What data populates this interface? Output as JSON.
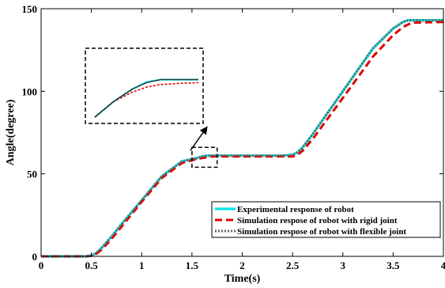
{
  "chart_data": {
    "type": "line",
    "title": "",
    "xlabel": "Time(s)",
    "ylabel": "Angle(degree)",
    "xlim": [
      0,
      4
    ],
    "ylim": [
      0,
      150
    ],
    "xticks": [
      0,
      0.5,
      1,
      1.5,
      2,
      2.5,
      3,
      3.5,
      4
    ],
    "xtick_labels": [
      "0",
      "0.5",
      "1",
      "1.5",
      "2",
      "2.5",
      "3",
      "3.5",
      "4"
    ],
    "yticks": [
      0,
      50,
      100,
      150
    ],
    "ytick_labels": [
      "0",
      "50",
      "100",
      "150"
    ],
    "grid": false,
    "legend_position": "bottom-right",
    "series": [
      {
        "name": "Experimental response of robot",
        "color": "#00e5e5",
        "style": "solid",
        "x": [
          0,
          0.45,
          0.5,
          0.55,
          0.6,
          0.7,
          0.8,
          1.0,
          1.2,
          1.4,
          1.55,
          1.6,
          1.65,
          1.7,
          1.8,
          2.0,
          2.2,
          2.4,
          2.5,
          2.55,
          2.6,
          2.7,
          3.0,
          3.3,
          3.5,
          3.6,
          3.65,
          3.7,
          4.0
        ],
        "y": [
          0,
          0,
          0.5,
          2,
          5,
          12,
          19.5,
          34,
          48.5,
          57.5,
          59.5,
          60.5,
          61,
          61,
          61,
          61,
          61,
          61,
          61.5,
          63,
          66,
          74,
          100,
          126,
          138,
          142,
          143,
          143,
          143
        ]
      },
      {
        "name": "Simulation respose of robot with rigid joint",
        "color": "#e00000",
        "style": "dashed",
        "x": [
          0,
          0.45,
          0.5,
          0.55,
          0.6,
          0.7,
          0.8,
          1.0,
          1.2,
          1.4,
          1.55,
          1.6,
          1.65,
          1.7,
          1.8,
          2.0,
          2.2,
          2.4,
          2.5,
          2.55,
          2.6,
          2.7,
          3.0,
          3.3,
          3.5,
          3.6,
          3.65,
          3.7,
          4.0
        ],
        "y": [
          0,
          0,
          0.3,
          1.5,
          4,
          10.5,
          18,
          33,
          47.5,
          56.5,
          59,
          59.5,
          60,
          60.5,
          60.5,
          60.5,
          60.5,
          60.5,
          60.5,
          61.5,
          64,
          71,
          96,
          121,
          134,
          139,
          140.5,
          141.5,
          142
        ]
      },
      {
        "name": "Simulation respose of robot with flexible joint",
        "color": "#666666",
        "style": "dotted",
        "x": [
          0,
          0.45,
          0.5,
          0.55,
          0.6,
          0.7,
          0.8,
          1.0,
          1.2,
          1.4,
          1.55,
          1.6,
          1.65,
          1.7,
          1.8,
          2.0,
          2.2,
          2.4,
          2.5,
          2.55,
          2.6,
          2.7,
          3.0,
          3.3,
          3.5,
          3.6,
          3.65,
          3.7,
          4.0
        ],
        "y": [
          0,
          0,
          0.5,
          2,
          5,
          12,
          19.5,
          34,
          48.5,
          57.5,
          59.5,
          60.5,
          61,
          61,
          61,
          61,
          61,
          61,
          61.5,
          63,
          66,
          74,
          100,
          126,
          138,
          142,
          143,
          143,
          143
        ]
      }
    ],
    "inset": {
      "source_xlim": [
        1.5,
        1.75
      ],
      "source_ylim": [
        54,
        66
      ],
      "series_y": [
        [
          55,
          57.5,
          59.5,
          60.6,
          61.0,
          61.0,
          61.0
        ],
        [
          55,
          57.5,
          59.0,
          59.8,
          60.2,
          60.4,
          60.5
        ],
        [
          55,
          57.5,
          59.5,
          60.5,
          61.0,
          61.0,
          61.0
        ]
      ],
      "series_x": [
        1.52,
        1.56,
        1.6,
        1.63,
        1.66,
        1.7,
        1.74
      ]
    }
  }
}
